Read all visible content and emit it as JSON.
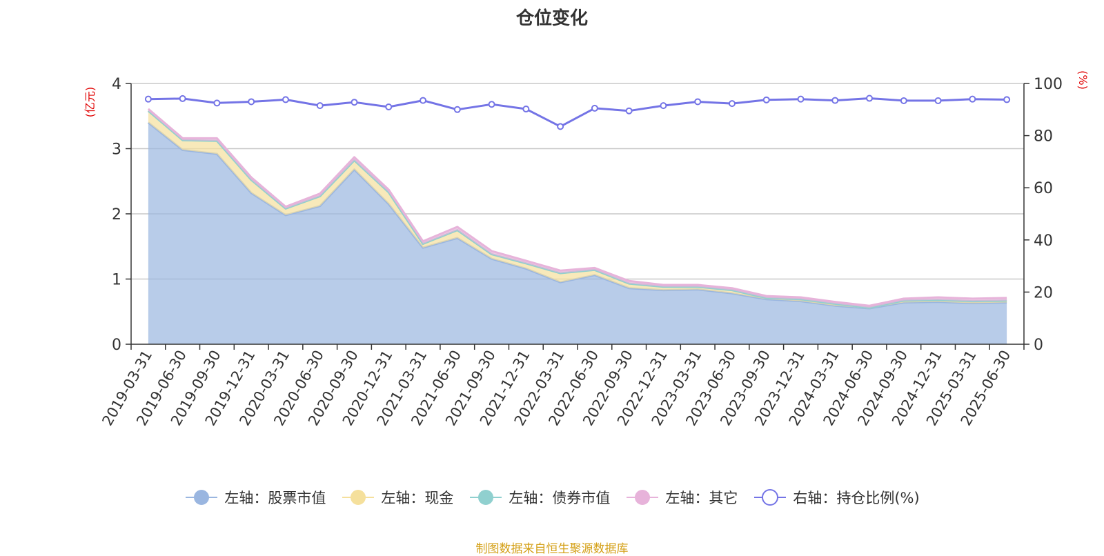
{
  "chart_data": {
    "type": "area",
    "title": "仓位变化",
    "left_unit": "(亿元)",
    "right_unit": "(%)",
    "left_ticks": [
      "0",
      "1",
      "2",
      "3",
      "4"
    ],
    "right_ticks": [
      "0",
      "20",
      "40",
      "60",
      "80",
      "100"
    ],
    "ylim_left": [
      0,
      4
    ],
    "ylim_right": [
      0,
      100
    ],
    "grid": true,
    "legend_position": "bottom",
    "x": [
      "2019-03-31",
      "2019-06-30",
      "2019-09-30",
      "2019-12-31",
      "2020-03-31",
      "2020-06-30",
      "2020-09-30",
      "2020-12-31",
      "2021-03-31",
      "2021-06-30",
      "2021-09-30",
      "2021-12-31",
      "2022-03-31",
      "2022-06-30",
      "2022-09-30",
      "2022-12-31",
      "2023-03-31",
      "2023-06-30",
      "2023-09-30",
      "2023-12-31",
      "2024-03-31",
      "2024-06-30",
      "2024-09-30",
      "2024-12-31",
      "2025-03-31",
      "2025-06-30"
    ],
    "series": [
      {
        "name": "左轴：股票市值",
        "axis": "left",
        "color": "#9ab6e0",
        "values": [
          3.4,
          2.98,
          2.92,
          2.32,
          1.98,
          2.12,
          2.68,
          2.15,
          1.48,
          1.63,
          1.31,
          1.16,
          0.95,
          1.06,
          0.86,
          0.83,
          0.84,
          0.78,
          0.69,
          0.66,
          0.59,
          0.55,
          0.64,
          0.65,
          0.63,
          0.64
        ]
      },
      {
        "name": "左轴：现金",
        "axis": "left",
        "color": "#f5e09c",
        "values": [
          0.18,
          0.15,
          0.2,
          0.2,
          0.1,
          0.15,
          0.14,
          0.18,
          0.06,
          0.12,
          0.07,
          0.08,
          0.14,
          0.08,
          0.07,
          0.05,
          0.04,
          0.05,
          0.02,
          0.03,
          0.03,
          0.01,
          0.03,
          0.03,
          0.03,
          0.03
        ]
      },
      {
        "name": "左轴：债券市值",
        "axis": "left",
        "color": "#90d0cf",
        "values": [
          0,
          0,
          0,
          0,
          0,
          0,
          0,
          0,
          0,
          0,
          0,
          0,
          0,
          0,
          0,
          0,
          0,
          0,
          0,
          0,
          0,
          0,
          0,
          0,
          0,
          0
        ]
      },
      {
        "name": "左轴：其它",
        "axis": "left",
        "color": "#e7b3da",
        "values": [
          0.03,
          0.03,
          0.04,
          0.04,
          0.03,
          0.04,
          0.05,
          0.04,
          0.04,
          0.05,
          0.05,
          0.04,
          0.04,
          0.03,
          0.04,
          0.03,
          0.03,
          0.03,
          0.03,
          0.03,
          0.03,
          0.03,
          0.03,
          0.04,
          0.04,
          0.04
        ]
      },
      {
        "name": "右轴：持仓比例(%)",
        "axis": "right",
        "color": "#7474e6",
        "values": [
          94.0,
          94.2,
          92.5,
          93.0,
          93.8,
          91.5,
          92.8,
          91.0,
          93.5,
          90.0,
          92.0,
          90.2,
          83.5,
          90.5,
          89.5,
          91.5,
          93.0,
          92.3,
          93.7,
          94.0,
          93.5,
          94.3,
          93.4,
          93.4,
          94.0,
          93.8
        ]
      }
    ]
  },
  "source_note": "制图数据来自恒生聚源数据库"
}
